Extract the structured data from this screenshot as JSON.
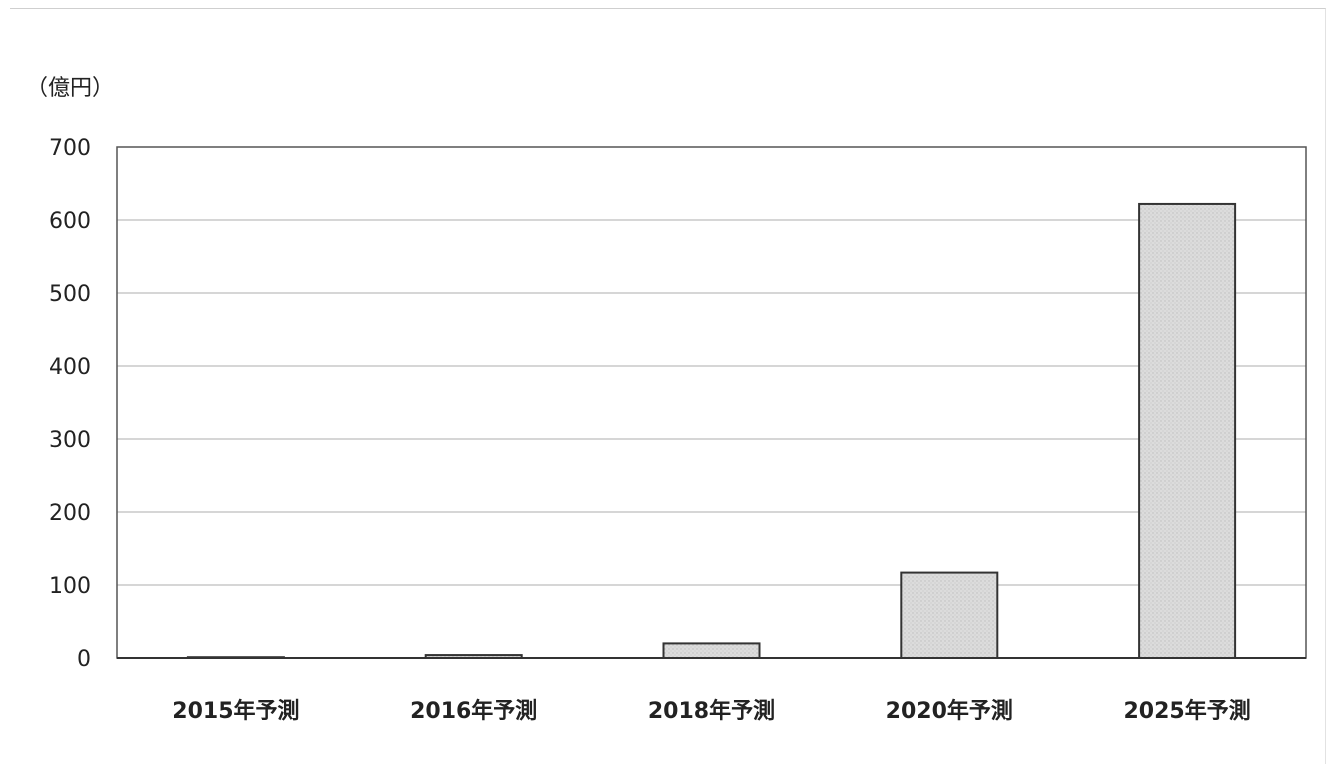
{
  "chart_data": {
    "type": "bar",
    "ylabel": "（億円）",
    "categories": [
      "2015年予測",
      "2016年予測",
      "2018年予測",
      "2020年予測",
      "2025年予測"
    ],
    "values": [
      0.5,
      4,
      20,
      117,
      622
    ],
    "ylim": [
      0,
      700
    ],
    "yticks": [
      0,
      100,
      200,
      300,
      400,
      500,
      600,
      700
    ],
    "grid": true,
    "legend": "none",
    "colors": {
      "bar_fill": "#d9d9d9",
      "bar_stroke": "#333333",
      "grid": "#c8c8c8",
      "axis": "#555555",
      "text": "#222222"
    }
  }
}
